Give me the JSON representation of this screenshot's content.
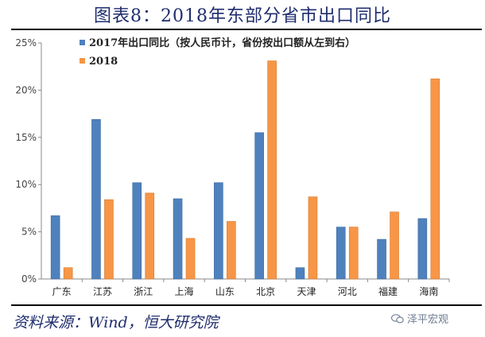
{
  "figure_title": "图表8：2018年东部分省市出口同比",
  "source_note": "资料来源：Wind，恒大研究院",
  "watermark_text": "泽平宏观",
  "colors": {
    "series_2017": "#4f81bd",
    "series_2018": "#f79646",
    "title": "#1f2d6e"
  },
  "chart_data": {
    "type": "bar",
    "title": "",
    "xlabel": "",
    "ylabel": "",
    "categories": [
      "广东",
      "江苏",
      "浙江",
      "上海",
      "山东",
      "北京",
      "天津",
      "河北",
      "福建",
      "海南"
    ],
    "series": [
      {
        "name": "2017年出口同比（按人民币计，省份按出口额从左到右）",
        "values": [
          6.7,
          16.9,
          10.2,
          8.5,
          10.2,
          15.5,
          1.2,
          5.5,
          4.2,
          6.4
        ]
      },
      {
        "name": "2018",
        "values": [
          1.2,
          8.4,
          9.1,
          4.3,
          6.1,
          23.1,
          8.7,
          5.5,
          7.1,
          21.2
        ]
      }
    ],
    "ylim": [
      0,
      25
    ],
    "yticks": [
      0,
      5,
      10,
      15,
      20,
      25
    ],
    "ytick_labels": [
      "0%",
      "5%",
      "10%",
      "15%",
      "20%",
      "25%"
    ],
    "grid": false,
    "legend_position": "top-left"
  }
}
